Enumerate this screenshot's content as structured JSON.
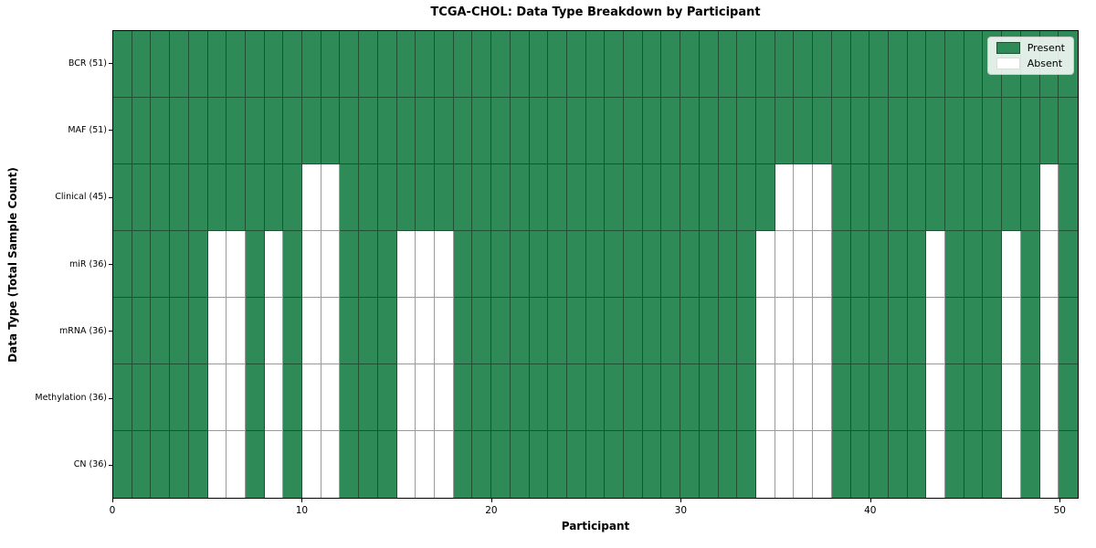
{
  "title": "TCGA-CHOL: Data Type Breakdown by Participant",
  "xlabel": "Participant",
  "ylabel": "Data Type (Total Sample Count)",
  "legend": {
    "present_label": "Present",
    "absent_label": "Absent"
  },
  "colors": {
    "present": "#2E8B57",
    "absent": "#ffffff",
    "present_edge": "#1d5233",
    "absent_edge": "#9a9a9a",
    "spine": "#000000",
    "legend_border": "#cccccc"
  },
  "chart_data": {
    "type": "heatmap",
    "title": "TCGA-CHOL: Data Type Breakdown by Participant",
    "xlabel": "Participant",
    "ylabel": "Data Type (Total Sample Count)",
    "n_participants": 51,
    "x_range": [
      0,
      51
    ],
    "x_ticks": [
      0,
      10,
      20,
      30,
      40,
      50
    ],
    "legend_entries": [
      "Present",
      "Absent"
    ],
    "legend_position": "upper right",
    "grid": true,
    "rows": [
      {
        "label": "BCR (51)",
        "data_type": "BCR",
        "total_samples": 51,
        "absent_participants": []
      },
      {
        "label": "MAF (51)",
        "data_type": "MAF",
        "total_samples": 51,
        "absent_participants": []
      },
      {
        "label": "Clinical (45)",
        "data_type": "Clinical",
        "total_samples": 45,
        "absent_participants": [
          10,
          11,
          35,
          36,
          37,
          49
        ]
      },
      {
        "label": "miR (36)",
        "data_type": "miR",
        "total_samples": 36,
        "absent_participants": [
          5,
          6,
          8,
          10,
          11,
          15,
          16,
          17,
          34,
          35,
          36,
          37,
          43,
          47,
          49
        ]
      },
      {
        "label": "mRNA (36)",
        "data_type": "mRNA",
        "total_samples": 36,
        "absent_participants": [
          5,
          6,
          8,
          10,
          11,
          15,
          16,
          17,
          34,
          35,
          36,
          37,
          43,
          47,
          49
        ]
      },
      {
        "label": "Methylation (36)",
        "data_type": "Methylation",
        "total_samples": 36,
        "absent_participants": [
          5,
          6,
          8,
          10,
          11,
          15,
          16,
          17,
          34,
          35,
          36,
          37,
          43,
          47,
          49
        ]
      },
      {
        "label": "CN (36)",
        "data_type": "CN",
        "total_samples": 36,
        "absent_participants": [
          5,
          6,
          8,
          10,
          11,
          15,
          16,
          17,
          34,
          35,
          36,
          37,
          43,
          47,
          49
        ]
      }
    ]
  }
}
